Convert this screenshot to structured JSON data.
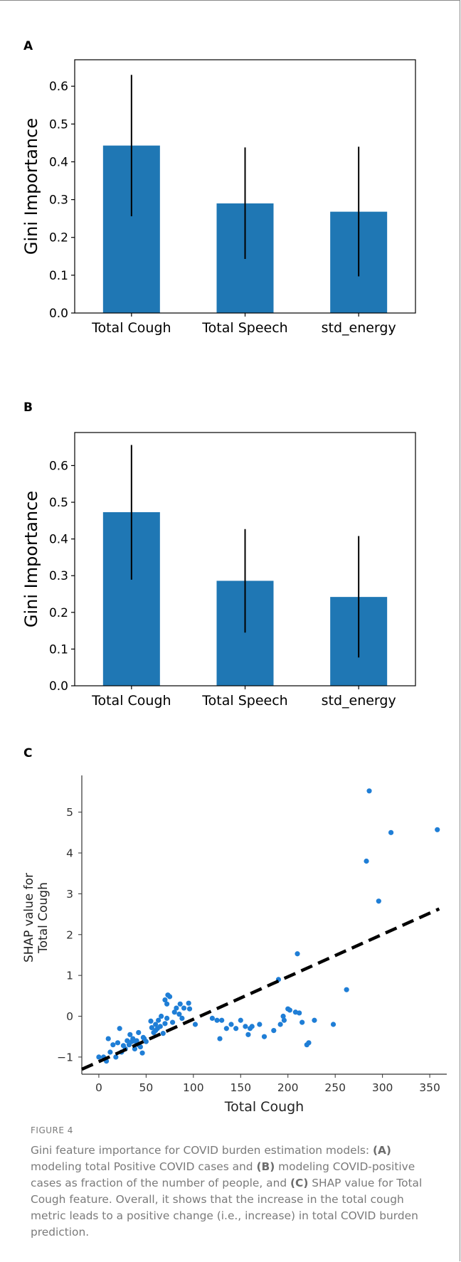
{
  "colors": {
    "bar": "#1f77b4",
    "scatter": "#1f7ed6",
    "frame_border": "#8a8a8a",
    "caption_text": "#7a7a7a"
  },
  "chart_data": [
    {
      "panel": "A",
      "type": "bar",
      "categories": [
        "Total Cough",
        "Total Speech",
        "std_energy"
      ],
      "values": [
        0.443,
        0.29,
        0.268
      ],
      "error_low": [
        0.256,
        0.143,
        0.097
      ],
      "error_high": [
        0.63,
        0.438,
        0.44
      ],
      "ylabel": "Gini Importance",
      "ylim": [
        0,
        0.67
      ],
      "yticks": [
        "0.0",
        "0.1",
        "0.2",
        "0.3",
        "0.4",
        "0.5",
        "0.6"
      ]
    },
    {
      "panel": "B",
      "type": "bar",
      "categories": [
        "Total Cough",
        "Total Speech",
        "std_energy"
      ],
      "values": [
        0.473,
        0.286,
        0.242
      ],
      "error_low": [
        0.289,
        0.145,
        0.077
      ],
      "error_high": [
        0.656,
        0.427,
        0.408
      ],
      "ylabel": "Gini Importance",
      "ylim": [
        0,
        0.69
      ],
      "yticks": [
        "0.0",
        "0.1",
        "0.2",
        "0.3",
        "0.4",
        "0.5",
        "0.6"
      ]
    },
    {
      "panel": "C",
      "type": "scatter",
      "xlabel": "Total Cough",
      "ylabel": "SHAP value for\nTotal Cough",
      "xlim": [
        -18,
        368
      ],
      "ylim": [
        -1.42,
        5.9
      ],
      "xticks": [
        "0",
        "50",
        "100",
        "150",
        "200",
        "250",
        "300",
        "350"
      ],
      "yticks": [
        "−1",
        "0",
        "1",
        "2",
        "3",
        "4",
        "5"
      ],
      "trend_line": {
        "x": [
          -18,
          360
        ],
        "y": [
          -1.3,
          2.63
        ]
      },
      "points": [
        [
          0,
          -1.0
        ],
        [
          5,
          -1.0
        ],
        [
          8,
          -1.1
        ],
        [
          10,
          -0.55
        ],
        [
          12,
          -0.88
        ],
        [
          15,
          -0.7
        ],
        [
          18,
          -1.0
        ],
        [
          20,
          -0.65
        ],
        [
          22,
          -0.3
        ],
        [
          24,
          -0.88
        ],
        [
          26,
          -0.72
        ],
        [
          28,
          -0.8
        ],
        [
          30,
          -0.6
        ],
        [
          32,
          -0.7
        ],
        [
          33,
          -0.45
        ],
        [
          35,
          -0.62
        ],
        [
          36,
          -0.55
        ],
        [
          38,
          -0.8
        ],
        [
          40,
          -0.6
        ],
        [
          40,
          -0.65
        ],
        [
          42,
          -0.7
        ],
        [
          42,
          -0.4
        ],
        [
          44,
          -0.75
        ],
        [
          46,
          -0.9
        ],
        [
          47,
          -0.52
        ],
        [
          48,
          -0.55
        ],
        [
          50,
          -0.62
        ],
        [
          55,
          -0.12
        ],
        [
          56,
          -0.28
        ],
        [
          58,
          -0.4
        ],
        [
          60,
          -0.2
        ],
        [
          60,
          -0.35
        ],
        [
          62,
          -0.3
        ],
        [
          63,
          -0.1
        ],
        [
          65,
          -0.25
        ],
        [
          66,
          0.0
        ],
        [
          68,
          -0.42
        ],
        [
          70,
          -0.18
        ],
        [
          70,
          0.4
        ],
        [
          72,
          0.3
        ],
        [
          72,
          -0.05
        ],
        [
          73,
          0.52
        ],
        [
          75,
          0.48
        ],
        [
          78,
          -0.15
        ],
        [
          80,
          0.1
        ],
        [
          82,
          0.2
        ],
        [
          85,
          0.05
        ],
        [
          86,
          0.3
        ],
        [
          88,
          -0.05
        ],
        [
          90,
          0.2
        ],
        [
          95,
          0.32
        ],
        [
          96,
          0.18
        ],
        [
          102,
          -0.2
        ],
        [
          120,
          -0.05
        ],
        [
          125,
          -0.1
        ],
        [
          128,
          -0.55
        ],
        [
          130,
          -0.1
        ],
        [
          135,
          -0.3
        ],
        [
          140,
          -0.2
        ],
        [
          145,
          -0.3
        ],
        [
          150,
          -0.1
        ],
        [
          155,
          -0.25
        ],
        [
          158,
          -0.45
        ],
        [
          160,
          -0.3
        ],
        [
          162,
          -0.25
        ],
        [
          170,
          -0.2
        ],
        [
          175,
          -0.5
        ],
        [
          185,
          -0.35
        ],
        [
          190,
          0.9
        ],
        [
          192,
          -0.2
        ],
        [
          195,
          0.0
        ],
        [
          196,
          -0.1
        ],
        [
          200,
          0.18
        ],
        [
          202,
          0.15
        ],
        [
          208,
          0.1
        ],
        [
          210,
          1.53
        ],
        [
          212,
          0.08
        ],
        [
          215,
          -0.15
        ],
        [
          220,
          -0.7
        ],
        [
          222,
          -0.65
        ],
        [
          228,
          -0.1
        ],
        [
          248,
          -0.2
        ],
        [
          262,
          0.65
        ],
        [
          283,
          3.8
        ],
        [
          286,
          5.52
        ],
        [
          296,
          2.82
        ],
        [
          309,
          4.5
        ],
        [
          358,
          4.57
        ]
      ]
    }
  ],
  "panel_labels": [
    "A",
    "B",
    "C"
  ],
  "caption": {
    "figure_label": "FIGURE 4",
    "parts": [
      {
        "text": "Gini feature importance for COVID burden estimation models: ",
        "bold": false
      },
      {
        "text": "(A)",
        "bold": true
      },
      {
        "text": " modeling total Positive COVID cases and ",
        "bold": false
      },
      {
        "text": "(B)",
        "bold": true
      },
      {
        "text": " modeling COVID-positive cases as fraction of the number of people, and ",
        "bold": false
      },
      {
        "text": "(C)",
        "bold": true
      },
      {
        "text": " SHAP value for Total Cough feature. Overall, it shows that the increase in the total cough metric leads to a positive change (i.e., increase) in total COVID burden prediction.",
        "bold": false
      }
    ]
  }
}
